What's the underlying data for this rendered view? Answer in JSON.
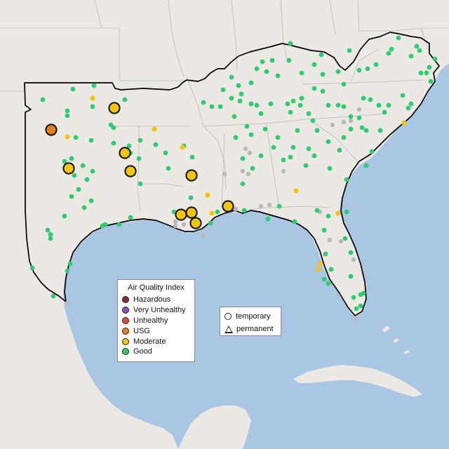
{
  "legend": {
    "title": "Air Quality Index",
    "categories": [
      {
        "label": "Hazardous",
        "color": "#7e2f2f"
      },
      {
        "label": "Very Unhealthy",
        "color": "#8e4fb5"
      },
      {
        "label": "Unhealthy",
        "color": "#e04a3a"
      },
      {
        "label": "USG",
        "color": "#e67e22"
      },
      {
        "label": "Moderate",
        "color": "#f1c40f"
      },
      {
        "label": "Good",
        "color": "#2ecc71"
      }
    ],
    "monitor_types": [
      {
        "label": "temporary",
        "shape": "circle"
      },
      {
        "label": "permanent",
        "shape": "triangle"
      }
    ]
  },
  "colors": {
    "ocean": "#a9c6e2",
    "land": "#ece8e3",
    "inactive_monitor": "#b8b8b8",
    "region_outline": "#000000"
  }
}
